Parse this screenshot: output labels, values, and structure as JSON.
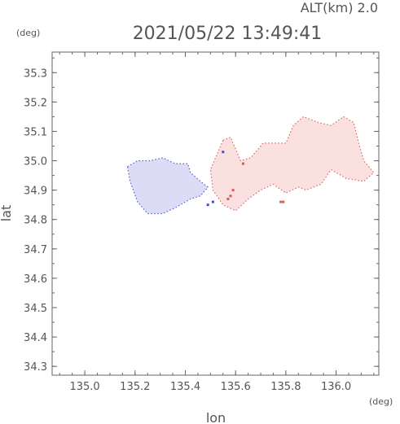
{
  "chart_data": {
    "type": "heatmap",
    "title": "2021/05/22 13:49:41",
    "altitude_label": "ALT(km) 2.0",
    "xlabel": "lon",
    "ylabel": "lat",
    "x_unit": "(deg)",
    "y_unit": "(deg)",
    "xlim": [
      134.87,
      136.17
    ],
    "ylim": [
      34.27,
      35.37
    ],
    "x_ticks": [
      "135.0",
      "135.2",
      "135.4",
      "135.6",
      "135.8",
      "136.0"
    ],
    "y_ticks": [
      "34.3",
      "34.4",
      "34.5",
      "34.6",
      "34.7",
      "34.8",
      "34.9",
      "35.0",
      "35.1",
      "35.2",
      "35.3"
    ],
    "grid": false,
    "regions": [
      {
        "sign": "negative",
        "color": "#dcdcf7",
        "outline": [
          [
            135.17,
            34.98
          ],
          [
            135.21,
            35.0
          ],
          [
            135.26,
            35.0
          ],
          [
            135.31,
            35.01
          ],
          [
            135.36,
            34.99
          ],
          [
            135.41,
            34.99
          ],
          [
            135.42,
            34.96
          ],
          [
            135.46,
            34.93
          ],
          [
            135.49,
            34.91
          ],
          [
            135.46,
            34.88
          ],
          [
            135.42,
            34.87
          ],
          [
            135.36,
            34.84
          ],
          [
            135.31,
            34.82
          ],
          [
            135.25,
            34.82
          ],
          [
            135.21,
            34.86
          ],
          [
            135.18,
            34.93
          ]
        ]
      },
      {
        "sign": "positive",
        "color": "#fbe0e0",
        "outline": [
          [
            135.55,
            35.07
          ],
          [
            135.58,
            35.08
          ],
          [
            135.6,
            35.04
          ],
          [
            135.62,
            35.0
          ],
          [
            135.66,
            35.01
          ],
          [
            135.71,
            35.06
          ],
          [
            135.75,
            35.06
          ],
          [
            135.8,
            35.06
          ],
          [
            135.83,
            35.12
          ],
          [
            135.87,
            35.15
          ],
          [
            135.93,
            35.13
          ],
          [
            135.98,
            35.12
          ],
          [
            136.03,
            35.15
          ],
          [
            136.07,
            35.13
          ],
          [
            136.09,
            35.06
          ],
          [
            136.11,
            35.0
          ],
          [
            136.15,
            34.96
          ],
          [
            136.11,
            34.93
          ],
          [
            136.04,
            34.94
          ],
          [
            135.98,
            34.97
          ],
          [
            135.94,
            34.92
          ],
          [
            135.88,
            34.9
          ],
          [
            135.85,
            34.91
          ],
          [
            135.8,
            34.89
          ],
          [
            135.75,
            34.92
          ],
          [
            135.7,
            34.9
          ],
          [
            135.65,
            34.87
          ],
          [
            135.6,
            34.83
          ],
          [
            135.55,
            34.85
          ],
          [
            135.51,
            34.9
          ],
          [
            135.5,
            34.97
          ]
        ]
      }
    ],
    "strong_cells": {
      "positive": [
        [
          135.58,
          34.88
        ],
        [
          135.59,
          34.9
        ],
        [
          135.57,
          34.87
        ],
        [
          135.78,
          34.86
        ],
        [
          135.79,
          34.86
        ],
        [
          135.63,
          34.99
        ]
      ],
      "negative": [
        [
          135.51,
          34.86
        ],
        [
          135.49,
          34.85
        ],
        [
          135.55,
          35.03
        ]
      ]
    }
  }
}
